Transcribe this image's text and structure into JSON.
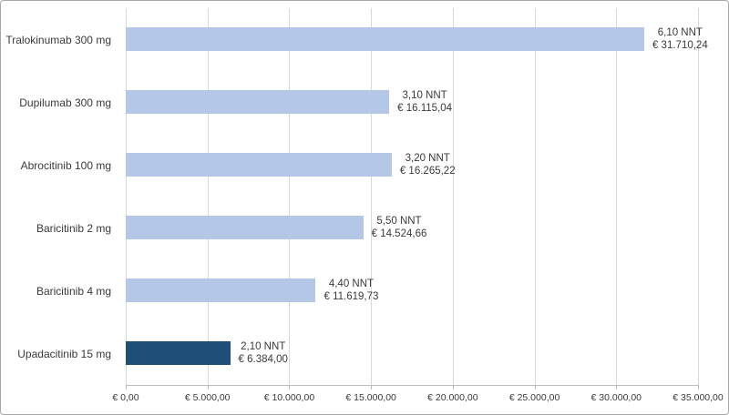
{
  "chart_data": {
    "type": "bar",
    "orientation": "horizontal",
    "title": "",
    "xlabel": "",
    "ylabel": "",
    "xlim": [
      0,
      35000
    ],
    "grid": "vertical",
    "legend": "none",
    "categories": [
      "Tralokinumab 300 mg",
      "Dupilumab 300 mg",
      "Abrocitinib 100 mg",
      "Baricitinib 2 mg",
      "Baricitinib 4 mg",
      "Upadacitinib 15 mg"
    ],
    "values": [
      31710.24,
      16115.04,
      16265.22,
      14524.66,
      11619.73,
      6384.0
    ],
    "nnt_values": [
      6.1,
      3.1,
      3.2,
      5.5,
      4.4,
      2.1
    ],
    "nnt_labels": [
      "6,10 NNT",
      "3,10 NNT",
      "3,20 NNT",
      "5,50 NNT",
      "4,40 NNT",
      "2,10 NNT"
    ],
    "cost_labels": [
      "€ 31.710,24",
      "€ 16.115,04",
      "€ 16.265,22",
      "€ 14.524,66",
      "€ 11.619,73",
      "€ 6.384,00"
    ],
    "bar_colors": [
      "#b4c7e7",
      "#b4c7e7",
      "#b4c7e7",
      "#b4c7e7",
      "#b4c7e7",
      "#1f4e79"
    ],
    "x_ticks": [
      "€ 0,00",
      "€ 5.000,00",
      "€ 10.000,00",
      "€ 15.000,00",
      "€ 20.000,00",
      "€ 25.000,00",
      "€ 30.000,00",
      "€ 35.000,00"
    ],
    "x_tick_values": [
      0,
      5000,
      10000,
      15000,
      20000,
      25000,
      30000,
      35000
    ],
    "colors": {
      "bar_light": "#b4c7e7",
      "bar_dark": "#1f4e79",
      "gridline": "#d9d9d9",
      "axis_line": "#bfbfbf",
      "text": "#3a3a3a",
      "frame_border": "#a6a6a6",
      "background": "#ffffff"
    }
  }
}
